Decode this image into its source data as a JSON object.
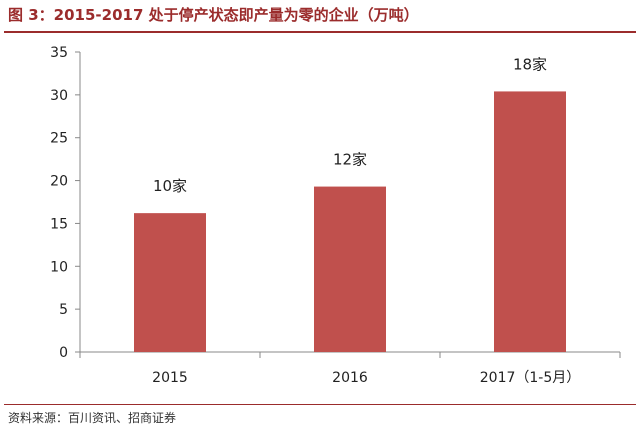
{
  "header": {
    "title": "图 3：2015-2017 处于停产状态即产量为零的企业（万吨）"
  },
  "footer": {
    "source": "资料来源：百川资讯、招商证券"
  },
  "colors": {
    "title": "#9b2c2c",
    "bar": "#c0504d",
    "axis": "#888888"
  },
  "chart_data": {
    "type": "bar",
    "categories": [
      "2015",
      "2016",
      "2017（1-5月）"
    ],
    "values": [
      16.2,
      19.3,
      30.4
    ],
    "data_labels": [
      "10家",
      "12家",
      "18家"
    ],
    "ylim": [
      0,
      35
    ],
    "yticks": [
      "0",
      "5",
      "10",
      "15",
      "20",
      "25",
      "30",
      "35"
    ],
    "grid": false,
    "legend": "none"
  }
}
